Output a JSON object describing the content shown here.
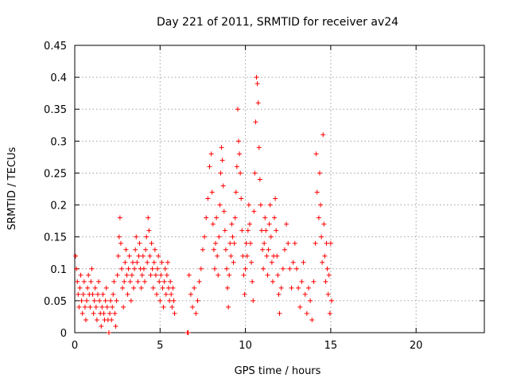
{
  "chart_data": {
    "type": "scatter",
    "title": "Day 221 of 2011, SRMTID for receiver av24",
    "xlabel": "GPS time / hours",
    "ylabel": "SRMTID / TECUs",
    "xlim": [
      0,
      24
    ],
    "ylim": [
      0,
      0.45
    ],
    "x_ticks": [
      0,
      5,
      10,
      15,
      20
    ],
    "y_ticks": [
      0,
      0.05,
      0.1,
      0.15,
      0.2,
      0.25,
      0.3,
      0.35,
      0.4,
      0.45
    ],
    "x_tick_labels": [
      "0",
      "5",
      "10",
      "15",
      "20"
    ],
    "y_tick_labels": [
      "0",
      "0.05",
      "0.1",
      "0.15",
      "0.2",
      "0.25",
      "0.3",
      "0.35",
      "0.4",
      "0.45"
    ],
    "grid": true,
    "marker": "plus",
    "color": "#ff0000",
    "series": [
      {
        "points": [
          [
            0.05,
            0.12
          ],
          [
            0.1,
            0.1
          ],
          [
            0.15,
            0.08
          ],
          [
            0.2,
            0.06
          ],
          [
            0.25,
            0.04
          ],
          [
            0.3,
            0.07
          ],
          [
            0.35,
            0.09
          ],
          [
            0.4,
            0.05
          ],
          [
            0.45,
            0.03
          ],
          [
            0.5,
            0.06
          ],
          [
            0.55,
            0.08
          ],
          [
            0.6,
            0.04
          ],
          [
            0.65,
            0.02
          ],
          [
            0.7,
            0.05
          ],
          [
            0.75,
            0.07
          ],
          [
            0.8,
            0.09
          ],
          [
            0.85,
            0.06
          ],
          [
            0.9,
            0.04
          ],
          [
            0.95,
            0.08
          ],
          [
            1.0,
            0.1
          ],
          [
            1.05,
            0.06
          ],
          [
            1.1,
            0.03
          ],
          [
            1.15,
            0.05
          ],
          [
            1.2,
            0.07
          ],
          [
            1.25,
            0.04
          ],
          [
            1.3,
            0.02
          ],
          [
            1.35,
            0.06
          ],
          [
            1.4,
            0.08
          ],
          [
            1.45,
            0.05
          ],
          [
            1.5,
            0.03
          ],
          [
            1.55,
            0.01
          ],
          [
            1.6,
            0.04
          ],
          [
            1.65,
            0.06
          ],
          [
            1.7,
            0.03
          ],
          [
            1.75,
            0.02
          ],
          [
            1.8,
            0.05
          ],
          [
            1.85,
            0.07
          ],
          [
            1.9,
            0.04
          ],
          [
            1.95,
            0.02
          ],
          [
            2.0,
            0.0
          ],
          [
            2.05,
            0.03
          ],
          [
            2.1,
            0.05
          ],
          [
            2.15,
            0.02
          ],
          [
            2.2,
            0.04
          ],
          [
            2.25,
            0.06
          ],
          [
            2.3,
            0.08
          ],
          [
            2.35,
            0.03
          ],
          [
            2.4,
            0.01
          ],
          [
            2.45,
            0.05
          ],
          [
            2.5,
            0.09
          ],
          [
            2.55,
            0.12
          ],
          [
            2.6,
            0.15
          ],
          [
            2.65,
            0.18
          ],
          [
            2.7,
            0.14
          ],
          [
            2.75,
            0.1
          ],
          [
            2.8,
            0.07
          ],
          [
            2.85,
            0.04
          ],
          [
            2.9,
            0.08
          ],
          [
            2.95,
            0.11
          ],
          [
            3.0,
            0.13
          ],
          [
            3.05,
            0.09
          ],
          [
            3.1,
            0.06
          ],
          [
            3.15,
            0.1
          ],
          [
            3.2,
            0.12
          ],
          [
            3.25,
            0.08
          ],
          [
            3.3,
            0.05
          ],
          [
            3.35,
            0.09
          ],
          [
            3.4,
            0.11
          ],
          [
            3.45,
            0.07
          ],
          [
            3.5,
            0.1
          ],
          [
            3.55,
            0.13
          ],
          [
            3.6,
            0.15
          ],
          [
            3.65,
            0.11
          ],
          [
            3.7,
            0.08
          ],
          [
            3.75,
            0.12
          ],
          [
            3.8,
            0.14
          ],
          [
            3.85,
            0.1
          ],
          [
            3.9,
            0.07
          ],
          [
            3.95,
            0.09
          ],
          [
            4.0,
            0.12
          ],
          [
            4.05,
            0.1
          ],
          [
            4.1,
            0.08
          ],
          [
            4.15,
            0.13
          ],
          [
            4.2,
            0.15
          ],
          [
            4.25,
            0.11
          ],
          [
            4.3,
            0.18
          ],
          [
            4.35,
            0.16
          ],
          [
            4.4,
            0.12
          ],
          [
            4.45,
            0.09
          ],
          [
            4.5,
            0.14
          ],
          [
            4.55,
            0.1
          ],
          [
            4.6,
            0.07
          ],
          [
            4.65,
            0.11
          ],
          [
            4.7,
            0.13
          ],
          [
            4.75,
            0.09
          ],
          [
            4.8,
            0.06
          ],
          [
            4.85,
            0.1
          ],
          [
            4.9,
            0.12
          ],
          [
            4.95,
            0.08
          ],
          [
            5.0,
            0.05
          ],
          [
            5.05,
            0.09
          ],
          [
            5.1,
            0.11
          ],
          [
            5.15,
            0.07
          ],
          [
            5.2,
            0.04
          ],
          [
            5.25,
            0.08
          ],
          [
            5.3,
            0.1
          ],
          [
            5.35,
            0.06
          ],
          [
            5.4,
            0.09
          ],
          [
            5.45,
            0.11
          ],
          [
            5.5,
            0.07
          ],
          [
            5.55,
            0.05
          ],
          [
            5.6,
            0.08
          ],
          [
            5.65,
            0.06
          ],
          [
            5.7,
            0.04
          ],
          [
            5.75,
            0.07
          ],
          [
            5.8,
            0.05
          ],
          [
            5.85,
            0.03
          ],
          [
            6.6,
            0.0
          ],
          [
            6.65,
            0.0
          ],
          [
            6.7,
            0.09
          ],
          [
            6.8,
            0.06
          ],
          [
            6.9,
            0.04
          ],
          [
            7.0,
            0.07
          ],
          [
            7.1,
            0.03
          ],
          [
            7.2,
            0.05
          ],
          [
            7.3,
            0.08
          ],
          [
            7.4,
            0.1
          ],
          [
            7.5,
            0.13
          ],
          [
            7.6,
            0.15
          ],
          [
            7.7,
            0.18
          ],
          [
            7.8,
            0.21
          ],
          [
            7.9,
            0.26
          ],
          [
            8.0,
            0.28
          ],
          [
            8.05,
            0.22
          ],
          [
            8.1,
            0.17
          ],
          [
            8.15,
            0.13
          ],
          [
            8.2,
            0.1
          ],
          [
            8.25,
            0.14
          ],
          [
            8.3,
            0.18
          ],
          [
            8.35,
            0.12
          ],
          [
            8.4,
            0.09
          ],
          [
            8.45,
            0.15
          ],
          [
            8.5,
            0.2
          ],
          [
            8.55,
            0.25
          ],
          [
            8.6,
            0.29
          ],
          [
            8.65,
            0.27
          ],
          [
            8.7,
            0.23
          ],
          [
            8.75,
            0.19
          ],
          [
            8.8,
            0.16
          ],
          [
            8.85,
            0.13
          ],
          [
            8.9,
            0.1
          ],
          [
            8.95,
            0.07
          ],
          [
            9.0,
            0.04
          ],
          [
            9.05,
            0.09
          ],
          [
            9.1,
            0.14
          ],
          [
            9.15,
            0.12
          ],
          [
            9.2,
            0.17
          ],
          [
            9.25,
            0.15
          ],
          [
            9.3,
            0.11
          ],
          [
            9.35,
            0.14
          ],
          [
            9.4,
            0.18
          ],
          [
            9.45,
            0.22
          ],
          [
            9.5,
            0.26
          ],
          [
            9.55,
            0.35
          ],
          [
            9.6,
            0.3
          ],
          [
            9.65,
            0.28
          ],
          [
            9.7,
            0.25
          ],
          [
            9.75,
            0.21
          ],
          [
            9.8,
            0.16
          ],
          [
            9.85,
            0.12
          ],
          [
            9.9,
            0.09
          ],
          [
            9.95,
            0.06
          ],
          [
            10.0,
            0.1
          ],
          [
            10.05,
            0.14
          ],
          [
            10.1,
            0.12
          ],
          [
            10.15,
            0.16
          ],
          [
            10.2,
            0.2
          ],
          [
            10.25,
            0.17
          ],
          [
            10.3,
            0.14
          ],
          [
            10.35,
            0.11
          ],
          [
            10.4,
            0.08
          ],
          [
            10.45,
            0.05
          ],
          [
            10.5,
            0.19
          ],
          [
            10.55,
            0.25
          ],
          [
            10.6,
            0.33
          ],
          [
            10.65,
            0.4
          ],
          [
            10.7,
            0.39
          ],
          [
            10.75,
            0.36
          ],
          [
            10.8,
            0.29
          ],
          [
            10.85,
            0.24
          ],
          [
            10.9,
            0.2
          ],
          [
            10.95,
            0.16
          ],
          [
            11.0,
            0.13
          ],
          [
            11.05,
            0.1
          ],
          [
            11.1,
            0.14
          ],
          [
            11.15,
            0.18
          ],
          [
            11.2,
            0.16
          ],
          [
            11.25,
            0.12
          ],
          [
            11.3,
            0.09
          ],
          [
            11.35,
            0.13
          ],
          [
            11.4,
            0.17
          ],
          [
            11.45,
            0.2
          ],
          [
            11.5,
            0.15
          ],
          [
            11.55,
            0.11
          ],
          [
            11.6,
            0.08
          ],
          [
            11.65,
            0.12
          ],
          [
            11.7,
            0.18
          ],
          [
            11.75,
            0.21
          ],
          [
            11.8,
            0.16
          ],
          [
            11.85,
            0.12
          ],
          [
            11.9,
            0.09
          ],
          [
            11.95,
            0.06
          ],
          [
            12.0,
            0.03
          ],
          [
            12.1,
            0.07
          ],
          [
            12.2,
            0.1
          ],
          [
            12.3,
            0.13
          ],
          [
            12.4,
            0.17
          ],
          [
            12.5,
            0.14
          ],
          [
            12.6,
            0.1
          ],
          [
            12.7,
            0.07
          ],
          [
            12.8,
            0.11
          ],
          [
            12.9,
            0.14
          ],
          [
            13.0,
            0.1
          ],
          [
            13.1,
            0.07
          ],
          [
            13.2,
            0.04
          ],
          [
            13.3,
            0.08
          ],
          [
            13.4,
            0.11
          ],
          [
            13.5,
            0.06
          ],
          [
            13.6,
            0.03
          ],
          [
            13.7,
            0.07
          ],
          [
            13.8,
            0.05
          ],
          [
            13.9,
            0.02
          ],
          [
            14.0,
            0.08
          ],
          [
            14.1,
            0.14
          ],
          [
            14.15,
            0.28
          ],
          [
            14.2,
            0.22
          ],
          [
            14.3,
            0.18
          ],
          [
            14.35,
            0.25
          ],
          [
            14.4,
            0.2
          ],
          [
            14.45,
            0.15
          ],
          [
            14.5,
            0.11
          ],
          [
            14.55,
            0.31
          ],
          [
            14.6,
            0.17
          ],
          [
            14.65,
            0.12
          ],
          [
            14.7,
            0.08
          ],
          [
            14.75,
            0.14
          ],
          [
            14.8,
            0.1
          ],
          [
            14.85,
            0.06
          ],
          [
            14.9,
            0.09
          ],
          [
            14.95,
            0.03
          ],
          [
            15.0,
            0.14
          ],
          [
            15.05,
            0.05
          ]
        ]
      }
    ]
  }
}
